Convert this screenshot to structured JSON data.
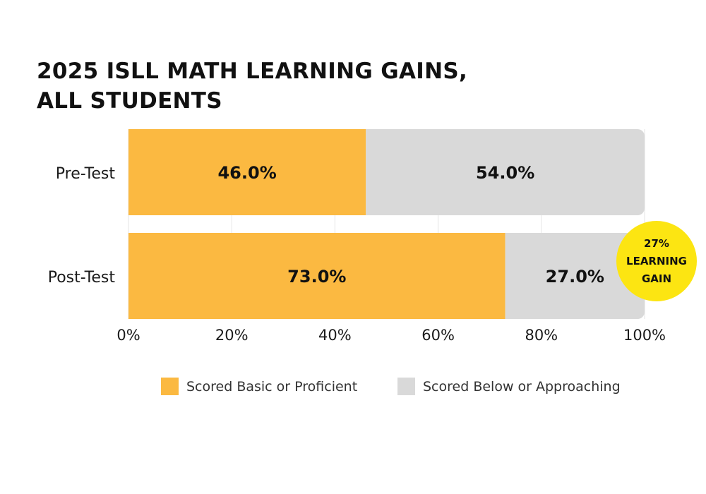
{
  "chart_data": {
    "type": "bar",
    "orientation": "horizontal",
    "stacked": true,
    "title": "2025 ISLL MATH LEARNING GAINS, ALL STUDENTS",
    "title_lines": [
      "2025 ISLL MATH LEARNING GAINS,",
      "ALL STUDENTS"
    ],
    "categories": [
      "Pre-Test",
      "Post-Test"
    ],
    "series": [
      {
        "name": "Scored Basic or Proficient",
        "values": [
          46.0,
          73.0
        ],
        "labels": [
          "46.0%",
          "73.0%"
        ],
        "color": "#FBB941"
      },
      {
        "name": "Scored Below or Approaching",
        "values": [
          54.0,
          27.0
        ],
        "labels": [
          "54.0%",
          "27.0%"
        ],
        "color": "#D9D9D9"
      }
    ],
    "xlim": [
      0,
      100
    ],
    "x_ticks": [
      0,
      20,
      40,
      60,
      80,
      100
    ],
    "x_tick_labels": [
      "0%",
      "20%",
      "40%",
      "60%",
      "80%",
      "100%"
    ],
    "grid": true,
    "legend_position": "bottom",
    "annotation": {
      "lines": [
        "27%",
        "LEARNING",
        "GAIN"
      ],
      "category": "Post-Test",
      "color": "#FCE512"
    }
  }
}
